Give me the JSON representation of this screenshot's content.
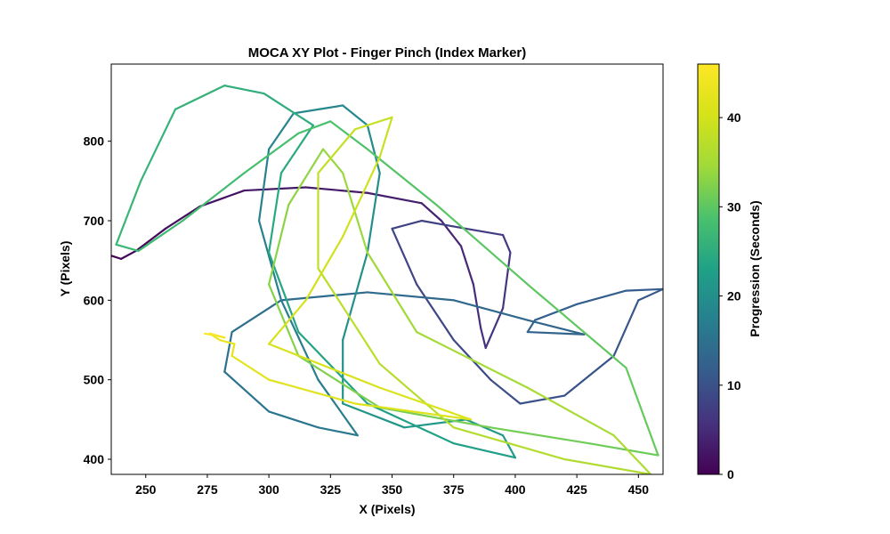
{
  "chart_data": {
    "type": "line",
    "title": "MOCA XY Plot - Finger Pinch (Index Marker)",
    "xlabel": "X (Pixels)",
    "ylabel": "Y (Pixels)",
    "xlim": [
      236,
      460
    ],
    "ylim": [
      381,
      897
    ],
    "xticks": [
      250,
      275,
      300,
      325,
      350,
      375,
      400,
      425,
      450
    ],
    "yticks": [
      400,
      500,
      600,
      700,
      800
    ],
    "grid": false,
    "colorbar": {
      "label": "Progression (Seconds)",
      "colormap": "viridis",
      "range": [
        0,
        46
      ],
      "ticks": [
        0,
        10,
        20,
        30,
        40
      ]
    },
    "trajectory": [
      {
        "t": 0,
        "x": 236,
        "y": 656
      },
      {
        "t": 0.4,
        "x": 240,
        "y": 652
      },
      {
        "t": 0.8,
        "x": 246,
        "y": 662
      },
      {
        "t": 1.3,
        "x": 258,
        "y": 690
      },
      {
        "t": 1.8,
        "x": 272,
        "y": 718
      },
      {
        "t": 2.3,
        "x": 290,
        "y": 738
      },
      {
        "t": 2.8,
        "x": 315,
        "y": 742
      },
      {
        "t": 3.3,
        "x": 340,
        "y": 735
      },
      {
        "t": 3.8,
        "x": 362,
        "y": 722
      },
      {
        "t": 4.2,
        "x": 370,
        "y": 700
      },
      {
        "t": 4.6,
        "x": 378,
        "y": 668
      },
      {
        "t": 5.0,
        "x": 383,
        "y": 620
      },
      {
        "t": 5.4,
        "x": 386,
        "y": 565
      },
      {
        "t": 5.8,
        "x": 388,
        "y": 540
      },
      {
        "t": 6.2,
        "x": 395,
        "y": 590
      },
      {
        "t": 6.6,
        "x": 398,
        "y": 660
      },
      {
        "t": 7.0,
        "x": 395,
        "y": 682
      },
      {
        "t": 7.4,
        "x": 380,
        "y": 690
      },
      {
        "t": 7.8,
        "x": 362,
        "y": 700
      },
      {
        "t": 8.2,
        "x": 350,
        "y": 690
      },
      {
        "t": 8.6,
        "x": 360,
        "y": 620
      },
      {
        "t": 9.0,
        "x": 375,
        "y": 550
      },
      {
        "t": 9.4,
        "x": 390,
        "y": 500
      },
      {
        "t": 9.8,
        "x": 402,
        "y": 470
      },
      {
        "t": 10.2,
        "x": 420,
        "y": 480
      },
      {
        "t": 10.6,
        "x": 440,
        "y": 530
      },
      {
        "t": 11.0,
        "x": 450,
        "y": 600
      },
      {
        "t": 11.4,
        "x": 460,
        "y": 614
      },
      {
        "t": 11.7,
        "x": 445,
        "y": 612
      },
      {
        "t": 12.0,
        "x": 425,
        "y": 595
      },
      {
        "t": 12.3,
        "x": 408,
        "y": 575
      },
      {
        "t": 12.6,
        "x": 405,
        "y": 560
      },
      {
        "t": 12.9,
        "x": 428,
        "y": 557
      },
      {
        "t": 13.2,
        "x": 405,
        "y": 575
      },
      {
        "t": 13.6,
        "x": 375,
        "y": 600
      },
      {
        "t": 14.0,
        "x": 340,
        "y": 610
      },
      {
        "t": 14.4,
        "x": 305,
        "y": 600
      },
      {
        "t": 14.8,
        "x": 285,
        "y": 560
      },
      {
        "t": 15.2,
        "x": 282,
        "y": 510
      },
      {
        "t": 15.6,
        "x": 300,
        "y": 460
      },
      {
        "t": 16.0,
        "x": 320,
        "y": 440
      },
      {
        "t": 16.4,
        "x": 336,
        "y": 430
      },
      {
        "t": 16.8,
        "x": 320,
        "y": 500
      },
      {
        "t": 17.2,
        "x": 305,
        "y": 600
      },
      {
        "t": 17.6,
        "x": 296,
        "y": 700
      },
      {
        "t": 18.0,
        "x": 300,
        "y": 790
      },
      {
        "t": 18.4,
        "x": 310,
        "y": 835
      },
      {
        "t": 18.8,
        "x": 330,
        "y": 845
      },
      {
        "t": 19.2,
        "x": 340,
        "y": 820
      },
      {
        "t": 19.6,
        "x": 345,
        "y": 760
      },
      {
        "t": 20.0,
        "x": 340,
        "y": 660
      },
      {
        "t": 20.4,
        "x": 330,
        "y": 550
      },
      {
        "t": 20.8,
        "x": 330,
        "y": 470
      },
      {
        "t": 21.2,
        "x": 355,
        "y": 440
      },
      {
        "t": 21.6,
        "x": 380,
        "y": 450
      },
      {
        "t": 22.0,
        "x": 395,
        "y": 430
      },
      {
        "t": 22.4,
        "x": 400,
        "y": 402
      },
      {
        "t": 22.8,
        "x": 375,
        "y": 420
      },
      {
        "t": 23.2,
        "x": 340,
        "y": 470
      },
      {
        "t": 23.6,
        "x": 312,
        "y": 560
      },
      {
        "t": 24.0,
        "x": 300,
        "y": 660
      },
      {
        "t": 24.4,
        "x": 305,
        "y": 760
      },
      {
        "t": 24.8,
        "x": 318,
        "y": 820
      },
      {
        "t": 25.2,
        "x": 298,
        "y": 860
      },
      {
        "t": 25.6,
        "x": 282,
        "y": 870
      },
      {
        "t": 26.0,
        "x": 262,
        "y": 840
      },
      {
        "t": 26.4,
        "x": 248,
        "y": 750
      },
      {
        "t": 26.8,
        "x": 238,
        "y": 670
      },
      {
        "t": 27.2,
        "x": 247,
        "y": 662
      },
      {
        "t": 27.6,
        "x": 265,
        "y": 700
      },
      {
        "t": 28.0,
        "x": 290,
        "y": 760
      },
      {
        "t": 28.4,
        "x": 312,
        "y": 810
      },
      {
        "t": 28.8,
        "x": 325,
        "y": 825
      },
      {
        "t": 29.2,
        "x": 340,
        "y": 790
      },
      {
        "t": 29.6,
        "x": 368,
        "y": 720
      },
      {
        "t": 30.0,
        "x": 405,
        "y": 620
      },
      {
        "t": 30.4,
        "x": 445,
        "y": 515
      },
      {
        "t": 30.8,
        "x": 458,
        "y": 405
      },
      {
        "t": 31.2,
        "x": 430,
        "y": 420
      },
      {
        "t": 31.6,
        "x": 390,
        "y": 440
      },
      {
        "t": 32.0,
        "x": 345,
        "y": 465
      },
      {
        "t": 32.4,
        "x": 312,
        "y": 530
      },
      {
        "t": 32.8,
        "x": 300,
        "y": 620
      },
      {
        "t": 33.2,
        "x": 308,
        "y": 720
      },
      {
        "t": 33.6,
        "x": 322,
        "y": 790
      },
      {
        "t": 34.0,
        "x": 330,
        "y": 760
      },
      {
        "t": 34.4,
        "x": 340,
        "y": 660
      },
      {
        "t": 34.8,
        "x": 360,
        "y": 560
      },
      {
        "t": 35.2,
        "x": 405,
        "y": 490
      },
      {
        "t": 35.6,
        "x": 440,
        "y": 430
      },
      {
        "t": 36.0,
        "x": 455,
        "y": 381
      },
      {
        "t": 36.4,
        "x": 420,
        "y": 400
      },
      {
        "t": 36.8,
        "x": 375,
        "y": 440
      },
      {
        "t": 37.2,
        "x": 345,
        "y": 520
      },
      {
        "t": 37.6,
        "x": 320,
        "y": 640
      },
      {
        "t": 38.0,
        "x": 320,
        "y": 760
      },
      {
        "t": 38.4,
        "x": 335,
        "y": 815
      },
      {
        "t": 38.8,
        "x": 350,
        "y": 830
      },
      {
        "t": 39.2,
        "x": 345,
        "y": 780
      },
      {
        "t": 39.6,
        "x": 330,
        "y": 680
      },
      {
        "t": 40.0,
        "x": 315,
        "y": 600
      },
      {
        "t": 40.4,
        "x": 300,
        "y": 545
      },
      {
        "t": 40.8,
        "x": 345,
        "y": 490
      },
      {
        "t": 41.2,
        "x": 382,
        "y": 450
      },
      {
        "t": 41.6,
        "x": 335,
        "y": 470
      },
      {
        "t": 42.0,
        "x": 300,
        "y": 500
      },
      {
        "t": 42.5,
        "x": 285,
        "y": 530
      },
      {
        "t": 43.0,
        "x": 286,
        "y": 545
      },
      {
        "t": 43.5,
        "x": 280,
        "y": 550
      },
      {
        "t": 44.0,
        "x": 276,
        "y": 558
      },
      {
        "t": 44.5,
        "x": 282,
        "y": 553
      },
      {
        "t": 45.0,
        "x": 278,
        "y": 556
      },
      {
        "t": 46,
        "x": 274,
        "y": 558
      }
    ]
  }
}
